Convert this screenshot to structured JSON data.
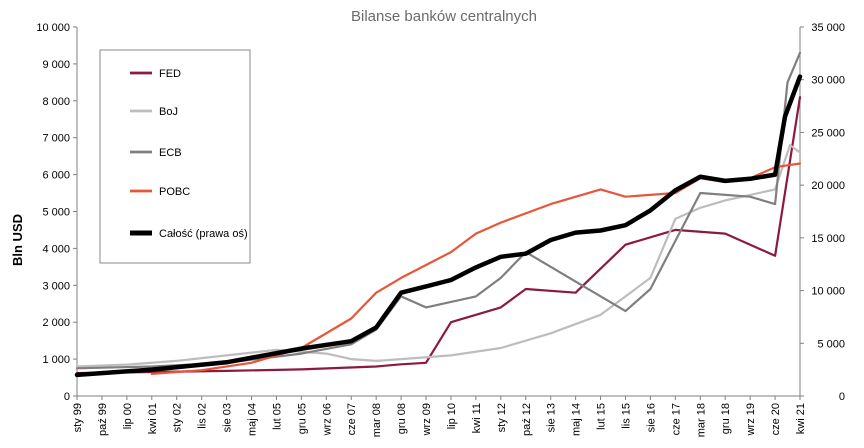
{
  "chart_data": {
    "type": "line",
    "title": "Bilanse banków centralnych",
    "ylabel": "Bln USD",
    "ylabel_right": "",
    "ylim": [
      0,
      10000
    ],
    "ylim_right": [
      0,
      35000
    ],
    "yticks": [
      "0",
      "1 000",
      "2 000",
      "3 000",
      "4 000",
      "5 000",
      "6 000",
      "7 000",
      "8 000",
      "9 000",
      "10 000"
    ],
    "yticks_right": [
      "0",
      "5 000",
      "10 000",
      "15 000",
      "20 000",
      "25 000",
      "30 000",
      "35 000"
    ],
    "x_categories": [
      "sty 99",
      "paź 99",
      "lip 00",
      "kwi 01",
      "sty 02",
      "lis 02",
      "sie 03",
      "maj 04",
      "lut 05",
      "gru 05",
      "wrz 06",
      "cze 07",
      "mar 08",
      "gru 08",
      "wrz 09",
      "lip 10",
      "kwi 11",
      "sty 12",
      "paź 12",
      "sie 13",
      "maj 14",
      "lut 15",
      "lis 15",
      "sie 16",
      "cze 17",
      "mar 18",
      "gru 18",
      "wrz 19",
      "cze 20",
      "kwi 21"
    ],
    "legend": {
      "position": "top-left",
      "box": true
    },
    "grid": false,
    "series": [
      {
        "name": "FED",
        "color": "#8b1a3c",
        "axis": "left",
        "width": 2.2,
        "x": [
          0,
          3,
          6,
          9,
          12,
          13,
          14,
          15,
          16,
          17,
          18,
          20,
          22,
          24,
          26,
          28,
          29
        ],
        "y": [
          620,
          650,
          680,
          720,
          800,
          860,
          900,
          2000,
          2200,
          2400,
          2900,
          2800,
          4100,
          4500,
          4400,
          3800,
          8100
        ]
      },
      {
        "name": "BoJ",
        "color": "#bdbdbd",
        "axis": "left",
        "width": 2.2,
        "x": [
          0,
          2,
          4,
          6,
          8,
          10,
          11,
          12,
          13,
          15,
          17,
          19,
          21,
          23,
          24,
          25,
          26,
          28,
          28.6,
          29
        ],
        "y": [
          800,
          850,
          950,
          1100,
          1250,
          1150,
          1000,
          950,
          1000,
          1100,
          1300,
          1700,
          2200,
          3200,
          4800,
          5100,
          5300,
          5600,
          6800,
          6600
        ]
      },
      {
        "name": "ECB",
        "color": "#7f7f7f",
        "axis": "left",
        "width": 2.2,
        "x": [
          0,
          3,
          6,
          9,
          11,
          12,
          13,
          14,
          16,
          17,
          18,
          20,
          22,
          23,
          24,
          25,
          27,
          28,
          28.5,
          29
        ],
        "y": [
          750,
          800,
          900,
          1150,
          1400,
          1800,
          2700,
          2400,
          2700,
          3200,
          3900,
          3100,
          2300,
          2900,
          4200,
          5500,
          5400,
          5200,
          8500,
          9300
        ]
      },
      {
        "name": "POBC",
        "color": "#e8563a",
        "axis": "left",
        "width": 2.2,
        "x": [
          3,
          5,
          7,
          9,
          11,
          12,
          13,
          15,
          16,
          17,
          19,
          21,
          22,
          24,
          25,
          26,
          27,
          28,
          29
        ],
        "y": [
          600,
          700,
          900,
          1300,
          2100,
          2800,
          3200,
          3900,
          4400,
          4700,
          5200,
          5600,
          5400,
          5500,
          5900,
          5800,
          5900,
          6200,
          6300
        ]
      },
      {
        "name": "Całość (prawa oś)",
        "color": "#000000",
        "axis": "right",
        "width": 4.5,
        "x": [
          0,
          3,
          6,
          9,
          11,
          12,
          13,
          14,
          15,
          16,
          17,
          18,
          19,
          20,
          21,
          22,
          23,
          24,
          25,
          26,
          27,
          28,
          28.4,
          29
        ],
        "y": [
          2000,
          2500,
          3200,
          4500,
          5200,
          6500,
          9800,
          10400,
          11000,
          12200,
          13200,
          13500,
          14800,
          15500,
          15700,
          16200,
          17600,
          19500,
          20800,
          20400,
          20600,
          21000,
          26500,
          30300
        ]
      }
    ]
  }
}
